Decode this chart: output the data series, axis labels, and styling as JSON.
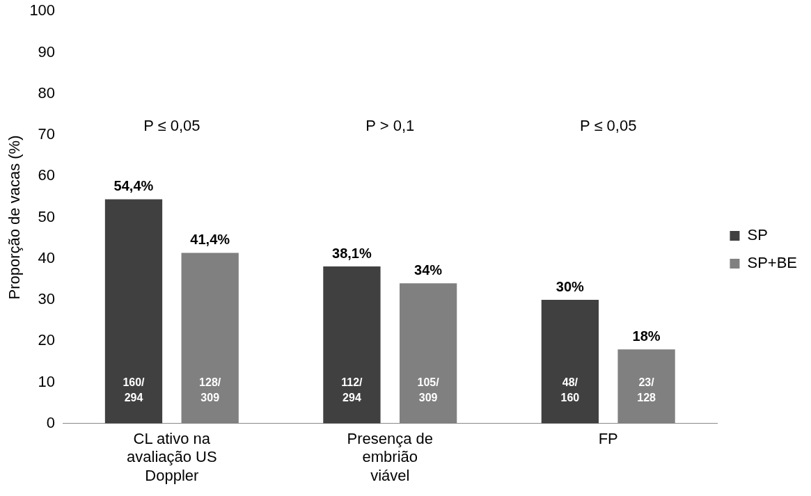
{
  "chart_data": {
    "type": "bar",
    "ylabel": "Proporção de vacas (%)",
    "categories": [
      "CL ativo na avaliação US Doppler",
      "Presença de embrião viável",
      "FP"
    ],
    "series": [
      {
        "name": "SP",
        "color": "#404040",
        "values": [
          54.4,
          38.1,
          30
        ],
        "value_labels": [
          "54,4%",
          "38,1%",
          "30%"
        ]
      },
      {
        "name": "SP+BE",
        "color": "#808080",
        "values": [
          41.4,
          34,
          18
        ],
        "value_labels": [
          "41,4%",
          "34%",
          "18%"
        ]
      }
    ],
    "ylim": [
      0,
      100
    ],
    "yticks": [
      0,
      10,
      20,
      30,
      40,
      50,
      60,
      70,
      80,
      90,
      100
    ],
    "grid": false,
    "legend": "right",
    "annotations": [
      "P ≤ 0,05",
      "160/ 294",
      "128/ 309",
      "P > 0,1",
      "112/ 294",
      "105/ 309",
      "P ≤ 0,05",
      "48/ 160",
      "23/ 128"
    ]
  }
}
